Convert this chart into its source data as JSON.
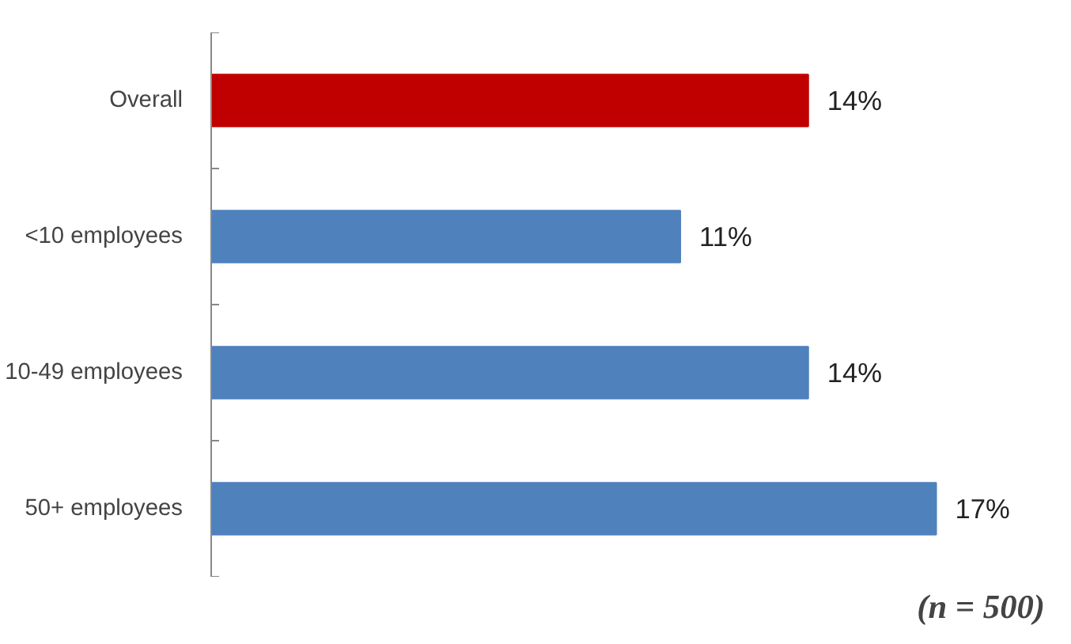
{
  "chart_data": {
    "type": "bar",
    "orientation": "horizontal",
    "categories": [
      "Overall",
      "<10 employees",
      "10-49 employees",
      "50+ employees"
    ],
    "values": [
      14,
      11,
      14,
      17
    ],
    "colors": [
      "#c00000",
      "#4f81bd",
      "#4f81bd",
      "#4f81bd"
    ],
    "data_labels": true,
    "value_labels": [
      "14%",
      "11%",
      "14%",
      "17%"
    ],
    "annotations": [
      "(n = 500)"
    ],
    "grid": false
  }
}
